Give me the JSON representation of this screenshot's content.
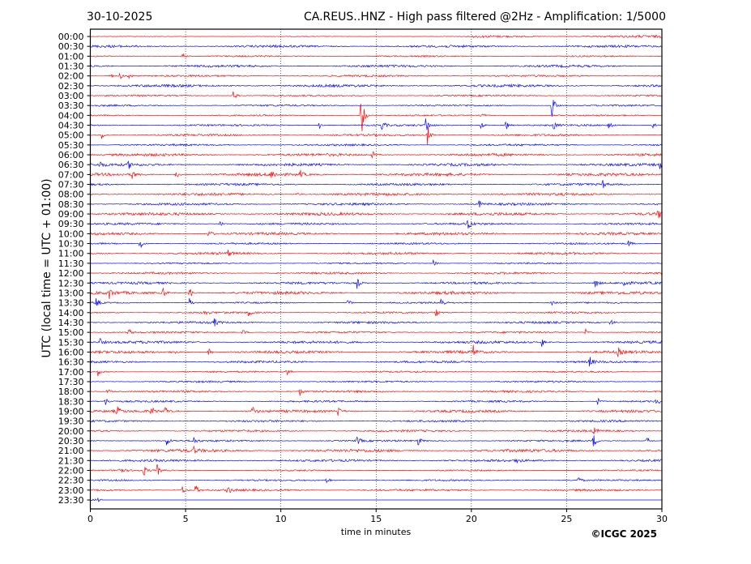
{
  "chart_data": {
    "type": "line",
    "title_left": "30-10-2025",
    "title_right": "CA.REUS..HNZ - High pass filtered @2Hz - Amplification: 1/5000",
    "xlabel": "time in minutes",
    "ylabel": "UTC (local time = UTC + 01:00)",
    "xlim": [
      0,
      30
    ],
    "xticks": [
      "0",
      "5",
      "10",
      "15",
      "20",
      "25",
      "30"
    ],
    "grid": "vertical dotted",
    "row_labels": [
      "00:00",
      "00:30",
      "01:00",
      "01:30",
      "02:00",
      "02:30",
      "03:00",
      "03:30",
      "04:00",
      "04:30",
      "05:00",
      "05:30",
      "06:00",
      "06:30",
      "07:00",
      "07:30",
      "08:00",
      "08:30",
      "09:00",
      "09:30",
      "10:00",
      "10:30",
      "11:00",
      "11:30",
      "12:00",
      "12:30",
      "13:00",
      "13:30",
      "14:00",
      "14:30",
      "15:00",
      "15:30",
      "16:00",
      "16:30",
      "17:00",
      "17:30",
      "18:00",
      "18:30",
      "19:00",
      "19:30",
      "20:00",
      "20:30",
      "21:00",
      "21:30",
      "22:00",
      "22:30",
      "23:00",
      "23:30"
    ],
    "colors": [
      "#ff0000",
      "#0000ff"
    ],
    "events": [
      [
        2,
        4.8,
        8
      ],
      [
        4,
        1.0,
        5
      ],
      [
        4,
        1.5,
        7
      ],
      [
        4,
        2.0,
        5
      ],
      [
        6,
        7.5,
        8
      ],
      [
        7,
        24.2,
        22
      ],
      [
        8,
        14.2,
        35
      ],
      [
        8,
        20.5,
        5
      ],
      [
        9,
        12.0,
        6
      ],
      [
        9,
        15.3,
        7
      ],
      [
        9,
        17.6,
        12
      ],
      [
        9,
        20.5,
        7
      ],
      [
        9,
        21.8,
        7
      ],
      [
        9,
        24.3,
        6
      ],
      [
        9,
        27.2,
        6
      ],
      [
        9,
        29.5,
        6
      ],
      [
        10,
        0.6,
        5
      ],
      [
        10,
        17.7,
        14
      ],
      [
        12,
        14.8,
        5
      ],
      [
        13,
        0.5,
        5
      ],
      [
        13,
        2.0,
        5
      ],
      [
        13,
        29.9,
        7
      ],
      [
        14,
        2.2,
        6
      ],
      [
        14,
        4.5,
        7
      ],
      [
        14,
        9.5,
        6
      ],
      [
        14,
        11,
        6
      ],
      [
        15,
        26.9,
        5
      ],
      [
        16,
        10.8,
        5
      ],
      [
        17,
        20.4,
        5
      ],
      [
        18,
        29.8,
        7
      ],
      [
        19,
        6.8,
        5
      ],
      [
        19,
        19.8,
        9
      ],
      [
        20,
        6.2,
        7
      ],
      [
        21,
        2.6,
        8
      ],
      [
        21,
        28.2,
        6
      ],
      [
        22,
        7.2,
        5
      ],
      [
        23,
        18.0,
        5
      ],
      [
        24,
        28.0,
        4
      ],
      [
        25,
        14.0,
        7
      ],
      [
        25,
        26.5,
        8
      ],
      [
        25,
        28.0,
        8
      ],
      [
        26,
        1.0,
        7
      ],
      [
        26,
        3.8,
        8
      ],
      [
        26,
        5.2,
        9
      ],
      [
        27,
        0.3,
        7
      ],
      [
        27,
        5.2,
        7
      ],
      [
        27,
        13.5,
        6
      ],
      [
        27,
        18.4,
        8
      ],
      [
        27,
        24.2,
        6
      ],
      [
        28,
        6.0,
        6
      ],
      [
        28,
        8.3,
        6
      ],
      [
        28,
        18.1,
        8
      ],
      [
        29,
        6.5,
        6
      ],
      [
        29,
        27.3,
        6
      ],
      [
        30,
        2.0,
        5
      ],
      [
        30,
        8.0,
        5
      ],
      [
        30,
        26.0,
        5
      ],
      [
        31,
        0.5,
        5
      ],
      [
        31,
        23.7,
        6
      ],
      [
        32,
        4.3,
        5
      ],
      [
        32,
        6.2,
        6
      ],
      [
        32,
        20.1,
        8
      ],
      [
        32,
        27.7,
        6
      ],
      [
        33,
        26.2,
        7
      ],
      [
        34,
        0.4,
        5
      ],
      [
        34,
        10.3,
        7
      ],
      [
        36,
        0.9,
        5
      ],
      [
        36,
        11.0,
        5
      ],
      [
        37,
        0.8,
        5
      ],
      [
        37,
        26.6,
        6
      ],
      [
        37,
        29.7,
        5
      ],
      [
        38,
        1.4,
        6
      ],
      [
        38,
        3.2,
        6
      ],
      [
        38,
        3.9,
        7
      ],
      [
        38,
        8.5,
        7
      ],
      [
        38,
        13.0,
        6
      ],
      [
        40,
        26.4,
        6
      ],
      [
        41,
        4.0,
        7
      ],
      [
        41,
        5.4,
        6
      ],
      [
        41,
        14.0,
        7
      ],
      [
        41,
        17.2,
        6
      ],
      [
        41,
        26.4,
        10
      ],
      [
        41,
        29.2,
        6
      ],
      [
        42,
        5.4,
        5
      ],
      [
        43,
        22.4,
        5
      ],
      [
        44,
        1.5,
        8
      ],
      [
        44,
        2.8,
        7
      ],
      [
        44,
        3.5,
        8
      ],
      [
        45,
        12.4,
        5
      ],
      [
        45,
        25.6,
        5
      ],
      [
        46,
        4.8,
        7
      ],
      [
        46,
        5.5,
        8
      ],
      [
        46,
        7.2,
        7
      ],
      [
        47,
        0.3,
        4
      ]
    ],
    "last_trace_end_minute": 0.6
  },
  "footer": {
    "copyright": "©ICGC 2025"
  }
}
